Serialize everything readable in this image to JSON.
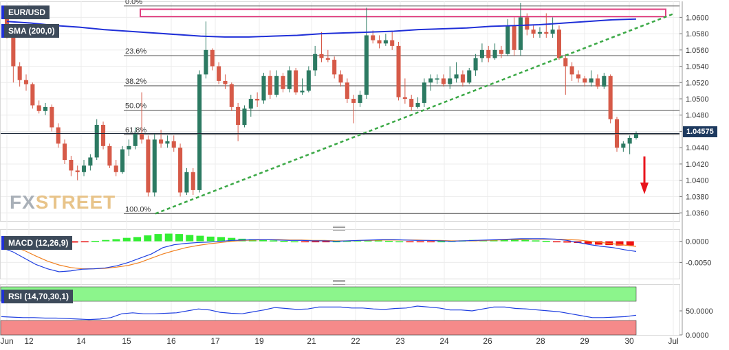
{
  "chart_data": {
    "type": "candlestick",
    "symbol": "EUR/USD",
    "price_label": "1.04575",
    "y_ticks": [
      "1.0600",
      "1.0580",
      "1.0560",
      "1.0540",
      "1.0520",
      "1.0500",
      "1.0480",
      "1.0460",
      "1.0440",
      "1.0420",
      "1.0400",
      "1.0380",
      "1.0360"
    ],
    "x_labels": [
      "Jun",
      "12",
      "14",
      "15",
      "16",
      "17",
      "19",
      "21",
      "22",
      "23",
      "24",
      "26",
      "28",
      "29",
      "30",
      "Jul"
    ],
    "fib_levels": [
      {
        "label": "0.0%",
        "value": 1.0614
      },
      {
        "label": "23.6%",
        "value": 1.0553
      },
      {
        "label": "38.2%",
        "value": 1.0516
      },
      {
        "label": "50.0%",
        "value": 1.0486
      },
      {
        "label": "61.8%",
        "value": 1.0456
      },
      {
        "label": "100.0%",
        "value": 1.0359
      }
    ],
    "resistance_zone": [
      1.0601,
      1.061
    ],
    "sma": {
      "label": "SMA (200,0)",
      "values": [
        1.0595,
        1.0593,
        1.059,
        1.0588,
        1.0585,
        1.0583,
        1.0581,
        1.0579,
        1.0577,
        1.0576,
        1.0576,
        1.0577,
        1.0578,
        1.058,
        1.0581,
        1.0582,
        1.0583,
        1.0585,
        1.0586,
        1.0587,
        1.0589,
        1.059,
        1.0591,
        1.0593,
        1.0595,
        1.0597,
        1.0598
      ]
    },
    "trendline": {
      "start": 1.0359,
      "end": 1.0604
    },
    "candles": [
      [
        1.0605,
        1.058,
        1.061,
        1.0574
      ],
      [
        1.058,
        1.054,
        1.059,
        1.052
      ],
      [
        1.054,
        1.0523,
        1.0545,
        1.0515
      ],
      [
        1.0523,
        1.0518,
        1.053,
        1.051
      ],
      [
        1.0518,
        1.0492,
        1.052,
        1.0488
      ],
      [
        1.0492,
        1.0485,
        1.0498,
        1.0482
      ],
      [
        1.0485,
        1.049,
        1.0495,
        1.048
      ],
      [
        1.049,
        1.0465,
        1.0493,
        1.046
      ],
      [
        1.0465,
        1.0445,
        1.047,
        1.044
      ],
      [
        1.0445,
        1.0425,
        1.045,
        1.042
      ],
      [
        1.0425,
        1.0412,
        1.043,
        1.0405
      ],
      [
        1.0412,
        1.041,
        1.0418,
        1.04
      ],
      [
        1.041,
        1.0418,
        1.0425,
        1.0405
      ],
      [
        1.0418,
        1.0428,
        1.0432,
        1.0412
      ],
      [
        1.0428,
        1.0468,
        1.0475,
        1.0425
      ],
      [
        1.0468,
        1.0442,
        1.0472,
        1.0438
      ],
      [
        1.0442,
        1.0418,
        1.0445,
        1.0415
      ],
      [
        1.0418,
        1.041,
        1.0425,
        1.0405
      ],
      [
        1.041,
        1.0438,
        1.0442,
        1.0408
      ],
      [
        1.0438,
        1.0442,
        1.045,
        1.043
      ],
      [
        1.0442,
        1.0458,
        1.0465,
        1.0438
      ],
      [
        1.0458,
        1.045,
        1.0508,
        1.0445
      ],
      [
        1.045,
        1.0385,
        1.0455,
        1.038
      ],
      [
        1.0385,
        1.045,
        1.0458,
        1.038
      ],
      [
        1.045,
        1.0445,
        1.0462,
        1.044
      ],
      [
        1.0445,
        1.0448,
        1.0455,
        1.044
      ],
      [
        1.0448,
        1.044,
        1.0455,
        1.0435
      ],
      [
        1.044,
        1.0385,
        1.0445,
        1.038
      ],
      [
        1.0385,
        1.041,
        1.0415,
        1.0382
      ],
      [
        1.041,
        1.0388,
        1.0415,
        1.0382
      ],
      [
        1.0388,
        1.053,
        1.0535,
        1.0385
      ],
      [
        1.053,
        1.056,
        1.0595,
        1.0525
      ],
      [
        1.056,
        1.054,
        1.0562,
        1.0535
      ],
      [
        1.054,
        1.0522,
        1.0545,
        1.0518
      ],
      [
        1.0522,
        1.0518,
        1.053,
        1.0512
      ],
      [
        1.0518,
        1.049,
        1.052,
        1.0485
      ],
      [
        1.049,
        1.0468,
        1.0495,
        1.0448
      ],
      [
        1.0468,
        1.0488,
        1.0492,
        1.0465
      ],
      [
        1.0488,
        1.05,
        1.0505,
        1.0478
      ],
      [
        1.05,
        1.0498,
        1.0508,
        1.049
      ],
      [
        1.0498,
        1.0528,
        1.0532,
        1.0494
      ],
      [
        1.0528,
        1.0505,
        1.0535,
        1.05
      ],
      [
        1.0505,
        1.0528,
        1.0535,
        1.0502
      ],
      [
        1.0528,
        1.0512,
        1.0532,
        1.0508
      ],
      [
        1.0512,
        1.0535,
        1.054,
        1.0508
      ],
      [
        1.0535,
        1.0508,
        1.0538,
        1.0505
      ],
      [
        1.0508,
        1.051,
        1.0525,
        1.0505
      ],
      [
        1.051,
        1.0535,
        1.054,
        1.0508
      ],
      [
        1.0535,
        1.0555,
        1.0565,
        1.0528
      ],
      [
        1.0555,
        1.055,
        1.0582,
        1.0545
      ],
      [
        1.055,
        1.0548,
        1.056,
        1.0545
      ],
      [
        1.0548,
        1.053,
        1.0552,
        1.0525
      ],
      [
        1.053,
        1.052,
        1.0535,
        1.0515
      ],
      [
        1.052,
        1.05,
        1.0525,
        1.0495
      ],
      [
        1.05,
        1.0495,
        1.0505,
        1.047
      ],
      [
        1.0495,
        1.0505,
        1.051,
        1.049
      ],
      [
        1.0505,
        1.0578,
        1.0612,
        1.05
      ],
      [
        1.0578,
        1.0572,
        1.0584,
        1.0568
      ],
      [
        1.0572,
        1.0568,
        1.0578,
        1.0562
      ],
      [
        1.0568,
        1.0572,
        1.058,
        1.0565
      ],
      [
        1.0572,
        1.0565,
        1.0582,
        1.056
      ],
      [
        1.0565,
        1.0502,
        1.057,
        1.0498
      ],
      [
        1.0502,
        1.05,
        1.0525,
        1.0494
      ],
      [
        1.05,
        1.049,
        1.0505,
        1.0485
      ],
      [
        1.049,
        1.0495,
        1.0502,
        1.0488
      ],
      [
        1.0495,
        1.052,
        1.0525,
        1.049
      ],
      [
        1.052,
        1.0525,
        1.053,
        1.051
      ],
      [
        1.0525,
        1.0525,
        1.053,
        1.0518
      ],
      [
        1.0525,
        1.0518,
        1.053,
        1.0515
      ],
      [
        1.0518,
        1.0525,
        1.054,
        1.0512
      ],
      [
        1.0525,
        1.053,
        1.0545,
        1.052
      ],
      [
        1.053,
        1.052,
        1.0535,
        1.0515
      ],
      [
        1.052,
        1.0535,
        1.0538,
        1.0518
      ],
      [
        1.0535,
        1.055,
        1.0555,
        1.0528
      ],
      [
        1.055,
        1.056,
        1.0568,
        1.0545
      ],
      [
        1.056,
        1.055,
        1.0565,
        1.0545
      ],
      [
        1.055,
        1.056,
        1.0568,
        1.0548
      ],
      [
        1.056,
        1.0555,
        1.0565,
        1.055
      ],
      [
        1.0555,
        1.059,
        1.0598,
        1.0553
      ],
      [
        1.059,
        1.056,
        1.06,
        1.0553
      ],
      [
        1.056,
        1.06,
        1.0618,
        1.0553
      ],
      [
        1.06,
        1.0585,
        1.0605,
        1.0578
      ],
      [
        1.0585,
        1.058,
        1.059,
        1.0575
      ],
      [
        1.058,
        1.0582,
        1.0588,
        1.0575
      ],
      [
        1.0582,
        1.058,
        1.0605,
        1.0575
      ],
      [
        1.058,
        1.0585,
        1.06,
        1.0575
      ],
      [
        1.0585,
        1.055,
        1.059,
        1.0548
      ],
      [
        1.055,
        1.054,
        1.0555,
        1.0505
      ],
      [
        1.054,
        1.053,
        1.0545,
        1.0522
      ],
      [
        1.053,
        1.0525,
        1.0535,
        1.052
      ],
      [
        1.0525,
        1.052,
        1.0528,
        1.0515
      ],
      [
        1.052,
        1.0525,
        1.0535,
        1.0515
      ],
      [
        1.0525,
        1.0515,
        1.053,
        1.0512
      ],
      [
        1.0515,
        1.0528,
        1.0532,
        1.0512
      ],
      [
        1.0528,
        1.0475,
        1.053,
        1.047
      ],
      [
        1.0475,
        1.044,
        1.0478,
        1.0435
      ],
      [
        1.044,
        1.0445,
        1.0448,
        1.0435
      ],
      [
        1.0445,
        1.0452,
        1.0455,
        1.0432
      ],
      [
        1.0452,
        1.0457,
        1.046,
        1.045
      ]
    ],
    "macd": {
      "label": "MACD (12,26,9)",
      "y_ticks": [
        "0.0000",
        "-0.0050"
      ],
      "histogram": [
        -0.001,
        -0.0008,
        -0.0007,
        -0.0006,
        -0.0005,
        -0.0004,
        -0.0003,
        -0.0002,
        0.0001,
        0.0003,
        0.0005,
        0.0008,
        0.001,
        0.0014,
        0.0017,
        0.0018,
        0.0017,
        0.0015,
        0.0013,
        0.0011,
        0.001,
        0.0008,
        0.0006,
        0.0005,
        0.0003,
        0.0002,
        0.0001,
        0.0,
        -0.0001,
        -0.0002,
        -0.0002,
        0.0,
        0.0001,
        0.0002,
        0.0002,
        0.0002,
        0.0001,
        0.0,
        -0.0001,
        -0.0001,
        -0.0001,
        0.0,
        0.0001,
        0.0002,
        0.0003,
        0.0003,
        0.0004,
        0.0004,
        0.0004,
        0.0003,
        0.0002,
        0.0001,
        -0.0001,
        -0.0003,
        -0.0004,
        -0.0006,
        -0.0008,
        -0.0009,
        -0.001,
        -0.001
      ],
      "macd_line": [
        -0.0015,
        -0.0025,
        -0.004,
        -0.0055,
        -0.0065,
        -0.0072,
        -0.007,
        -0.0066,
        -0.0065,
        -0.0063,
        -0.0058,
        -0.005,
        -0.004,
        -0.003,
        -0.0015,
        -0.0008,
        -0.0005,
        -0.0003,
        -0.0002,
        0.0,
        0.0002,
        0.0003,
        0.0004,
        0.0004,
        0.0003,
        0.0002,
        0.0002,
        0.0001,
        0.0001,
        0.0,
        0.0001,
        0.0002,
        0.0003,
        0.0004,
        0.0004,
        0.0003,
        0.0002,
        0.0002,
        0.0001,
        0.0,
        0.0001,
        0.0002,
        0.0003,
        0.0004,
        0.0005,
        0.0006,
        0.0006,
        0.0006,
        0.0005,
        0.0002,
        -0.0003,
        -0.0008,
        -0.0012,
        -0.0015,
        -0.002,
        -0.0024
      ],
      "signal_line": [
        -0.0005,
        -0.0012,
        -0.0022,
        -0.0035,
        -0.0047,
        -0.0056,
        -0.0062,
        -0.0065,
        -0.0065,
        -0.0064,
        -0.0061,
        -0.0057,
        -0.005,
        -0.004,
        -0.003,
        -0.0022,
        -0.0015,
        -0.001,
        -0.0006,
        -0.0003,
        0.0,
        0.0002,
        0.0003,
        0.0004,
        0.0004,
        0.0003,
        0.0003,
        0.0002,
        0.0002,
        0.0001,
        0.0001,
        0.0002,
        0.0002,
        0.0003,
        0.0003,
        0.0003,
        0.0003,
        0.0002,
        0.0002,
        0.0001,
        0.0001,
        0.0001,
        0.0002,
        0.0003,
        0.0004,
        0.0004,
        0.0005,
        0.0005,
        0.0005,
        0.0004,
        0.0003,
        0.0,
        -0.0003,
        -0.0006,
        -0.0009,
        -0.0012
      ]
    },
    "rsi": {
      "label": "RSI (14,70,30,1)",
      "y_ticks": [
        "50.0000",
        "0.0000"
      ],
      "upper": 70,
      "lower": 30,
      "values": [
        38,
        37,
        36,
        36,
        35,
        35,
        34,
        33,
        32,
        33,
        36,
        44,
        46,
        44,
        44,
        45,
        46,
        50,
        54,
        52,
        47,
        45,
        44,
        48,
        52,
        57,
        55,
        53,
        54,
        58,
        58,
        58,
        56,
        56,
        54,
        53,
        55,
        56,
        60,
        58,
        56,
        52,
        52,
        50,
        54,
        58,
        58,
        55,
        54,
        52,
        50,
        48,
        44,
        40,
        36,
        36,
        37,
        38,
        41
      ]
    }
  },
  "watermark": {
    "part1": "FX",
    "part2": "STREET"
  },
  "colors": {
    "bull": "#2c7a62",
    "bear": "#d65a48",
    "sma": "#1f2fd8",
    "trend": "#3aa845",
    "zone": "#e04080",
    "down_arrow": "#e8141c",
    "macd_pos": "#33ee33",
    "macd_neg": "#ee1111",
    "macd_line": "#1f3fe0",
    "signal_line": "#f08020",
    "rsi_over": "#8cf58c",
    "rsi_under": "#f58a8a"
  }
}
